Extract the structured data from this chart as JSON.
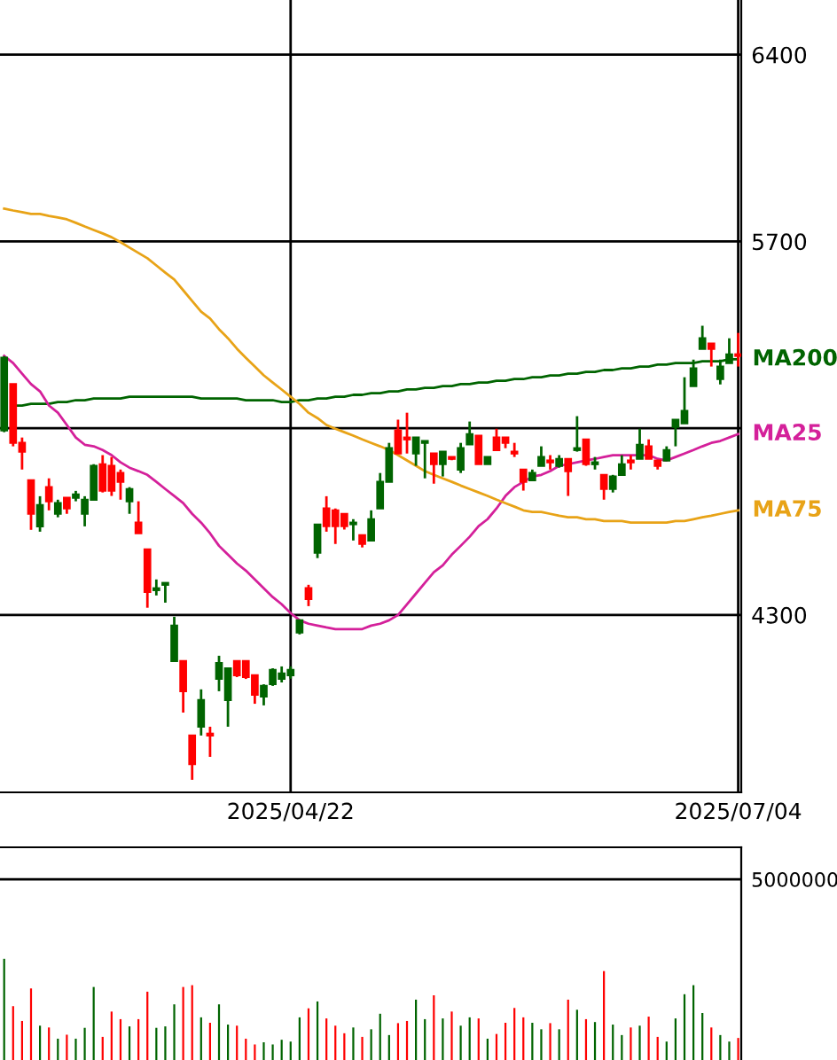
{
  "chart_data": [
    {
      "type": "candlestick",
      "categories": [
        null,
        null,
        null,
        null,
        null,
        null,
        null,
        null,
        null,
        null,
        null,
        null,
        null,
        null,
        null,
        null,
        null,
        null,
        null,
        null,
        null,
        null,
        null,
        null,
        null,
        null,
        null,
        null,
        null,
        null,
        null,
        null,
        "2025/04/22",
        null,
        null,
        null,
        null,
        null,
        null,
        null,
        null,
        null,
        null,
        null,
        null,
        null,
        null,
        null,
        null,
        null,
        null,
        null,
        null,
        null,
        null,
        null,
        null,
        null,
        null,
        null,
        null,
        null,
        null,
        null,
        null,
        null,
        null,
        null,
        null,
        null,
        null,
        null,
        null,
        null,
        null,
        null,
        null,
        null,
        null,
        null,
        null,
        null,
        "2025/07/04"
      ],
      "ohlc": [
        [
          4992,
          5270,
          4985,
          5264
        ],
        [
          5165,
          5165,
          4932,
          4945
        ],
        [
          4945,
          4965,
          4845,
          4912
        ],
        [
          4805,
          4805,
          4619,
          4679
        ],
        [
          4632,
          4745,
          4612,
          4712
        ],
        [
          4779,
          4812,
          4692,
          4726
        ],
        [
          4679,
          4732,
          4666,
          4719
        ],
        [
          4739,
          4739,
          4679,
          4699
        ],
        [
          4739,
          4765,
          4726,
          4752
        ],
        [
          4679,
          4745,
          4632,
          4732
        ],
        [
          4732,
          4865,
          4732,
          4859
        ],
        [
          4865,
          4899,
          4759,
          4766
        ],
        [
          4859,
          4892,
          4746,
          4766
        ],
        [
          4832,
          4845,
          4732,
          4799
        ],
        [
          4726,
          4779,
          4679,
          4772
        ],
        [
          4646,
          4726,
          4606,
          4606
        ],
        [
          4546,
          4546,
          4327,
          4386
        ],
        [
          4393,
          4433,
          4373,
          4400
        ],
        [
          4413,
          4420,
          4346,
          4420
        ],
        [
          4127,
          4293,
          4127,
          4260
        ],
        [
          4127,
          4127,
          3934,
          4014
        ],
        [
          3848,
          3848,
          3682,
          3741
        ],
        [
          3881,
          4021,
          3848,
          3981
        ],
        [
          3855,
          3881,
          3768,
          3848
        ],
        [
          4061,
          4147,
          4014,
          4120
        ],
        [
          3981,
          4100,
          3881,
          4100
        ],
        [
          4127,
          4127,
          4067,
          4074
        ],
        [
          4127,
          4127,
          4060,
          4067
        ],
        [
          4074,
          4074,
          3967,
          4001
        ],
        [
          3994,
          4040,
          3961,
          4034
        ],
        [
          4041,
          4100,
          4034,
          4094
        ],
        [
          4061,
          4107,
          4047,
          4081
        ],
        [
          4074,
          4107,
          4061,
          4094
        ],
        [
          4234,
          4280,
          4227,
          4280
        ],
        [
          4400,
          4413,
          4333,
          4360
        ],
        [
          4533,
          4639,
          4513,
          4639
        ],
        [
          4699,
          4745,
          4612,
          4633
        ],
        [
          4692,
          4699,
          4566,
          4633
        ],
        [
          4679,
          4679,
          4620,
          4633
        ],
        [
          4640,
          4659,
          4579,
          4646
        ],
        [
          4599,
          4599,
          4553,
          4566
        ],
        [
          4579,
          4692,
          4579,
          4659
        ],
        [
          4699,
          4832,
          4699,
          4799
        ],
        [
          4799,
          4945,
          4799,
          4925
        ],
        [
          4992,
          5032,
          4905,
          4905
        ],
        [
          4965,
          5058,
          4905,
          4958
        ],
        [
          4905,
          4965,
          4859,
          4965
        ],
        [
          4945,
          4952,
          4812,
          4952
        ],
        [
          4905,
          4905,
          4792,
          4865
        ],
        [
          4865,
          4912,
          4819,
          4912
        ],
        [
          4892,
          4892,
          4880,
          4885
        ],
        [
          4845,
          4945,
          4832,
          4925
        ],
        [
          4939,
          5025,
          4939,
          4978
        ],
        [
          4972,
          4972,
          4865,
          4865
        ],
        [
          4865,
          4892,
          4865,
          4892
        ],
        [
          4965,
          4998,
          4918,
          4918
        ],
        [
          4965,
          4965,
          4925,
          4945
        ],
        [
          4912,
          4945,
          4892,
          4905
        ],
        [
          4845,
          4845,
          4766,
          4799
        ],
        [
          4805,
          4845,
          4805,
          4832
        ],
        [
          4859,
          4932,
          4859,
          4892
        ],
        [
          4879,
          4899,
          4845,
          4872
        ],
        [
          4859,
          4899,
          4852,
          4885
        ],
        [
          4885,
          4885,
          4746,
          4839
        ],
        [
          4918,
          5045,
          4912,
          4925
        ],
        [
          4958,
          4958,
          4859,
          4865
        ],
        [
          4865,
          4892,
          4845,
          4872
        ],
        [
          4825,
          4825,
          4732,
          4772
        ],
        [
          4772,
          4825,
          4759,
          4819
        ],
        [
          4825,
          4899,
          4825,
          4865
        ],
        [
          4879,
          4899,
          4845,
          4872
        ],
        [
          4885,
          4998,
          4885,
          4938
        ],
        [
          4932,
          4958,
          4885,
          4885
        ],
        [
          4879,
          4879,
          4845,
          4859
        ],
        [
          4879,
          4932,
          4879,
          4918
        ],
        [
          5005,
          5032,
          4932,
          5032
        ],
        [
          5018,
          5191,
          5018,
          5065
        ],
        [
          5158,
          5257,
          5158,
          5224
        ],
        [
          5297,
          5384,
          5297,
          5337
        ],
        [
          5317,
          5317,
          5231,
          5297
        ],
        [
          5184,
          5257,
          5164,
          5231
        ],
        [
          5244,
          5337,
          5244,
          5277
        ],
        [
          5277,
          5357,
          5231,
          5271
        ]
      ],
      "colors": [
        "#006400",
        "#ff0000",
        "#ff0000",
        "#ff0000",
        "#006400",
        "#ff0000",
        "#006400",
        "#ff0000",
        "#006400",
        "#006400",
        "#006400",
        "#ff0000",
        "#ff0000",
        "#ff0000",
        "#006400",
        "#ff0000",
        "#ff0000",
        "#006400",
        "#006400",
        "#006400",
        "#ff0000",
        "#ff0000",
        "#006400",
        "#ff0000",
        "#006400",
        "#006400",
        "#ff0000",
        "#ff0000",
        "#ff0000",
        "#006400",
        "#006400",
        "#006400",
        "#006400",
        "#006400",
        "#ff0000",
        "#006400",
        "#ff0000",
        "#ff0000",
        "#ff0000",
        "#006400",
        "#ff0000",
        "#006400",
        "#006400",
        "#006400",
        "#ff0000",
        "#ff0000",
        "#006400",
        "#006400",
        "#ff0000",
        "#006400",
        "#ff0000",
        "#006400",
        "#006400",
        "#ff0000",
        "#006400",
        "#ff0000",
        "#ff0000",
        "#ff0000",
        "#ff0000",
        "#006400",
        "#006400",
        "#ff0000",
        "#006400",
        "#ff0000",
        "#006400",
        "#ff0000",
        "#006400",
        "#ff0000",
        "#006400",
        "#006400",
        "#ff0000",
        "#006400",
        "#ff0000",
        "#ff0000",
        "#006400",
        "#006400",
        "#006400",
        "#006400",
        "#006400",
        "#ff0000",
        "#006400",
        "#006400",
        "#ff0000"
      ],
      "series": [
        {
          "name": "MA200",
          "type": "line",
          "color": "#006400",
          "values": [
            null,
            5085,
            5085,
            5091,
            5091,
            5091,
            5098,
            5098,
            5105,
            5105,
            5111,
            5111,
            5111,
            5111,
            5118,
            5118,
            5118,
            5118,
            5118,
            5118,
            5118,
            5118,
            5111,
            5111,
            5111,
            5111,
            5111,
            5105,
            5105,
            5105,
            5105,
            5098,
            5098,
            5105,
            5105,
            5111,
            5111,
            5118,
            5118,
            5125,
            5125,
            5131,
            5131,
            5138,
            5138,
            5145,
            5145,
            5151,
            5151,
            5158,
            5158,
            5165,
            5165,
            5171,
            5171,
            5178,
            5178,
            5184,
            5184,
            5191,
            5191,
            5198,
            5198,
            5204,
            5204,
            5211,
            5211,
            5218,
            5218,
            5224,
            5224,
            5231,
            5231,
            5238,
            5238,
            5244,
            5244,
            5244,
            5251,
            5251,
            5251,
            5258,
            5258
          ]
        },
        {
          "name": "MA25",
          "type": "line",
          "color": "#d4209a",
          "values": [
            5271,
            5244,
            5204,
            5165,
            5138,
            5085,
            5058,
            5012,
            4965,
            4938,
            4932,
            4918,
            4899,
            4872,
            4852,
            4839,
            4825,
            4799,
            4772,
            4746,
            4719,
            4679,
            4646,
            4606,
            4559,
            4526,
            4493,
            4466,
            4433,
            4400,
            4367,
            4340,
            4307,
            4280,
            4267,
            4260,
            4253,
            4247,
            4247,
            4247,
            4247,
            4260,
            4267,
            4280,
            4300,
            4340,
            4380,
            4420,
            4460,
            4486,
            4526,
            4559,
            4593,
            4633,
            4659,
            4699,
            4746,
            4779,
            4799,
            4819,
            4825,
            4839,
            4859,
            4865,
            4872,
            4879,
            4885,
            4892,
            4899,
            4899,
            4899,
            4899,
            4899,
            4885,
            4879,
            4892,
            4905,
            4918,
            4932,
            4945,
            4952,
            4965,
            4978
          ]
        },
        {
          "name": "MA75",
          "type": "line",
          "color": "#e8a317",
          "values": [
            5823,
            5816,
            5810,
            5803,
            5803,
            5796,
            5790,
            5783,
            5770,
            5756,
            5743,
            5730,
            5716,
            5697,
            5677,
            5657,
            5637,
            5610,
            5583,
            5557,
            5517,
            5477,
            5437,
            5411,
            5371,
            5337,
            5298,
            5264,
            5231,
            5198,
            5171,
            5145,
            5118,
            5091,
            5058,
            5038,
            5012,
            4998,
            4985,
            4972,
            4958,
            4945,
            4932,
            4918,
            4899,
            4879,
            4859,
            4839,
            4825,
            4812,
            4799,
            4785,
            4772,
            4759,
            4746,
            4732,
            4719,
            4706,
            4692,
            4686,
            4686,
            4679,
            4672,
            4666,
            4666,
            4659,
            4659,
            4652,
            4652,
            4652,
            4646,
            4646,
            4646,
            4646,
            4646,
            4652,
            4652,
            4659,
            4666,
            4672,
            4679,
            4686,
            4692
          ]
        }
      ],
      "ylim": [
        3635,
        6605
      ],
      "yticks": [
        4300,
        {
          "value": 5000,
          "label": null
        },
        5700,
        6400
      ],
      "grid": true
    },
    {
      "type": "bar",
      "categories": [
        null,
        null,
        null,
        null,
        null,
        null,
        null,
        null,
        null,
        null,
        null,
        null,
        null,
        null,
        null,
        null,
        null,
        null,
        null,
        null,
        null,
        null,
        null,
        null,
        null,
        null,
        null,
        null,
        null,
        null,
        null,
        null,
        null,
        null,
        null,
        null,
        null,
        null,
        null,
        null,
        null,
        null,
        null,
        null,
        null,
        null,
        null,
        null,
        null,
        null,
        null,
        null,
        null,
        null,
        null,
        null,
        null,
        null,
        null,
        null,
        null,
        null,
        null,
        null,
        null,
        null,
        null,
        null,
        null,
        null,
        null,
        null,
        null,
        null,
        null,
        null,
        null,
        null,
        null,
        null,
        null,
        null,
        null
      ],
      "values": [
        2800000,
        1490000,
        1080000,
        1980000,
        950000,
        900000,
        590000,
        700000,
        590000,
        890000,
        2020000,
        640000,
        1340000,
        1130000,
        930000,
        1130000,
        1890000,
        890000,
        930000,
        1540000,
        2020000,
        2070000,
        1180000,
        1030000,
        1540000,
        980000,
        950000,
        590000,
        430000,
        490000,
        430000,
        560000,
        510000,
        1180000,
        1430000,
        1620000,
        1150000,
        950000,
        740000,
        900000,
        640000,
        850000,
        1280000,
        690000,
        1020000,
        1080000,
        1670000,
        1130000,
        1790000,
        1150000,
        1340000,
        950000,
        1180000,
        1150000,
        590000,
        720000,
        1030000,
        1440000,
        1180000,
        1030000,
        850000,
        1020000,
        850000,
        1670000,
        1390000,
        1130000,
        1050000,
        2460000,
        980000,
        690000,
        900000,
        950000,
        1200000,
        640000,
        510000,
        1150000,
        1820000,
        2070000,
        1300000,
        900000,
        690000,
        510000,
        610000
      ],
      "colors": [
        "#006400",
        "#ff0000",
        "#ff0000",
        "#ff0000",
        "#006400",
        "#ff0000",
        "#006400",
        "#ff0000",
        "#006400",
        "#006400",
        "#006400",
        "#ff0000",
        "#ff0000",
        "#ff0000",
        "#006400",
        "#ff0000",
        "#ff0000",
        "#006400",
        "#006400",
        "#006400",
        "#ff0000",
        "#ff0000",
        "#006400",
        "#ff0000",
        "#006400",
        "#006400",
        "#ff0000",
        "#ff0000",
        "#ff0000",
        "#006400",
        "#006400",
        "#006400",
        "#006400",
        "#006400",
        "#ff0000",
        "#006400",
        "#ff0000",
        "#ff0000",
        "#ff0000",
        "#006400",
        "#ff0000",
        "#006400",
        "#006400",
        "#006400",
        "#ff0000",
        "#ff0000",
        "#006400",
        "#006400",
        "#ff0000",
        "#006400",
        "#ff0000",
        "#006400",
        "#006400",
        "#ff0000",
        "#006400",
        "#ff0000",
        "#ff0000",
        "#ff0000",
        "#ff0000",
        "#006400",
        "#006400",
        "#ff0000",
        "#006400",
        "#ff0000",
        "#006400",
        "#ff0000",
        "#006400",
        "#ff0000",
        "#006400",
        "#006400",
        "#ff0000",
        "#006400",
        "#ff0000",
        "#ff0000",
        "#006400",
        "#006400",
        "#006400",
        "#006400",
        "#006400",
        "#ff0000",
        "#006400",
        "#006400",
        "#ff0000"
      ],
      "ylim": [
        0,
        5885000
      ],
      "yticks": [
        5000000
      ],
      "grid": "y"
    }
  ]
}
